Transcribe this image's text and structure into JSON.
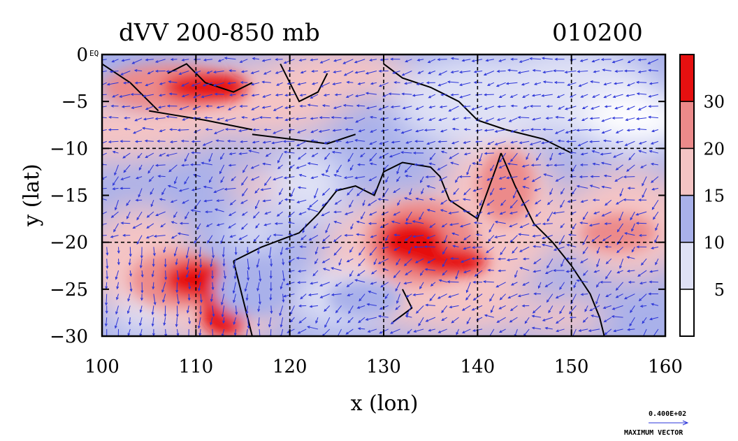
{
  "chart_data": {
    "type": "heatmap",
    "title": "dVV 200-850 mb",
    "date_label": "010200",
    "xlabel": "x (lon)",
    "ylabel": "y (lat)",
    "xlim": [
      100,
      160
    ],
    "ylim": [
      -30,
      0
    ],
    "x_ticks": [
      100,
      110,
      120,
      130,
      140,
      150,
      160
    ],
    "y_ticks": [
      0,
      -5,
      -10,
      -15,
      -20,
      -25,
      -30
    ],
    "x_tick_labels": [
      "100",
      "110",
      "120",
      "130",
      "140",
      "150",
      "160"
    ],
    "y_tick_labels": [
      "0",
      "−5",
      "−10",
      "−15",
      "−20",
      "−25",
      "−30"
    ],
    "grid": true,
    "gridlines_x": [
      110,
      120,
      130,
      140,
      150
    ],
    "gridlines_y": [
      -10,
      -20
    ],
    "colorbar": {
      "levels": [
        0,
        5,
        10,
        15,
        20,
        30,
        40
      ],
      "labels": [
        "5",
        "10",
        "15",
        "20",
        "30"
      ],
      "colors": [
        "#ffffff",
        "#dfe1f5",
        "#a9b1ea",
        "#f4c4c4",
        "#ec8a8a",
        "#e61010"
      ]
    },
    "corner_label": "EQ",
    "vector_key": {
      "value": "0.400E+02",
      "label": "MAXIMUM VECTOR"
    },
    "features": [
      {
        "name": "jet-maximum-northwest",
        "lon": 108,
        "lat": -4,
        "value": 32
      },
      {
        "name": "jet-maximum-southwest",
        "lon": 110,
        "lat": -24,
        "value": 38
      },
      {
        "name": "jet-maximum-central",
        "lon": 134,
        "lat": -20,
        "value": 36
      },
      {
        "name": "local-maximum-east",
        "lon": 142,
        "lat": -14,
        "value": 24
      },
      {
        "name": "local-maximum-southeast",
        "lon": 155,
        "lat": -19,
        "value": 20
      }
    ]
  }
}
